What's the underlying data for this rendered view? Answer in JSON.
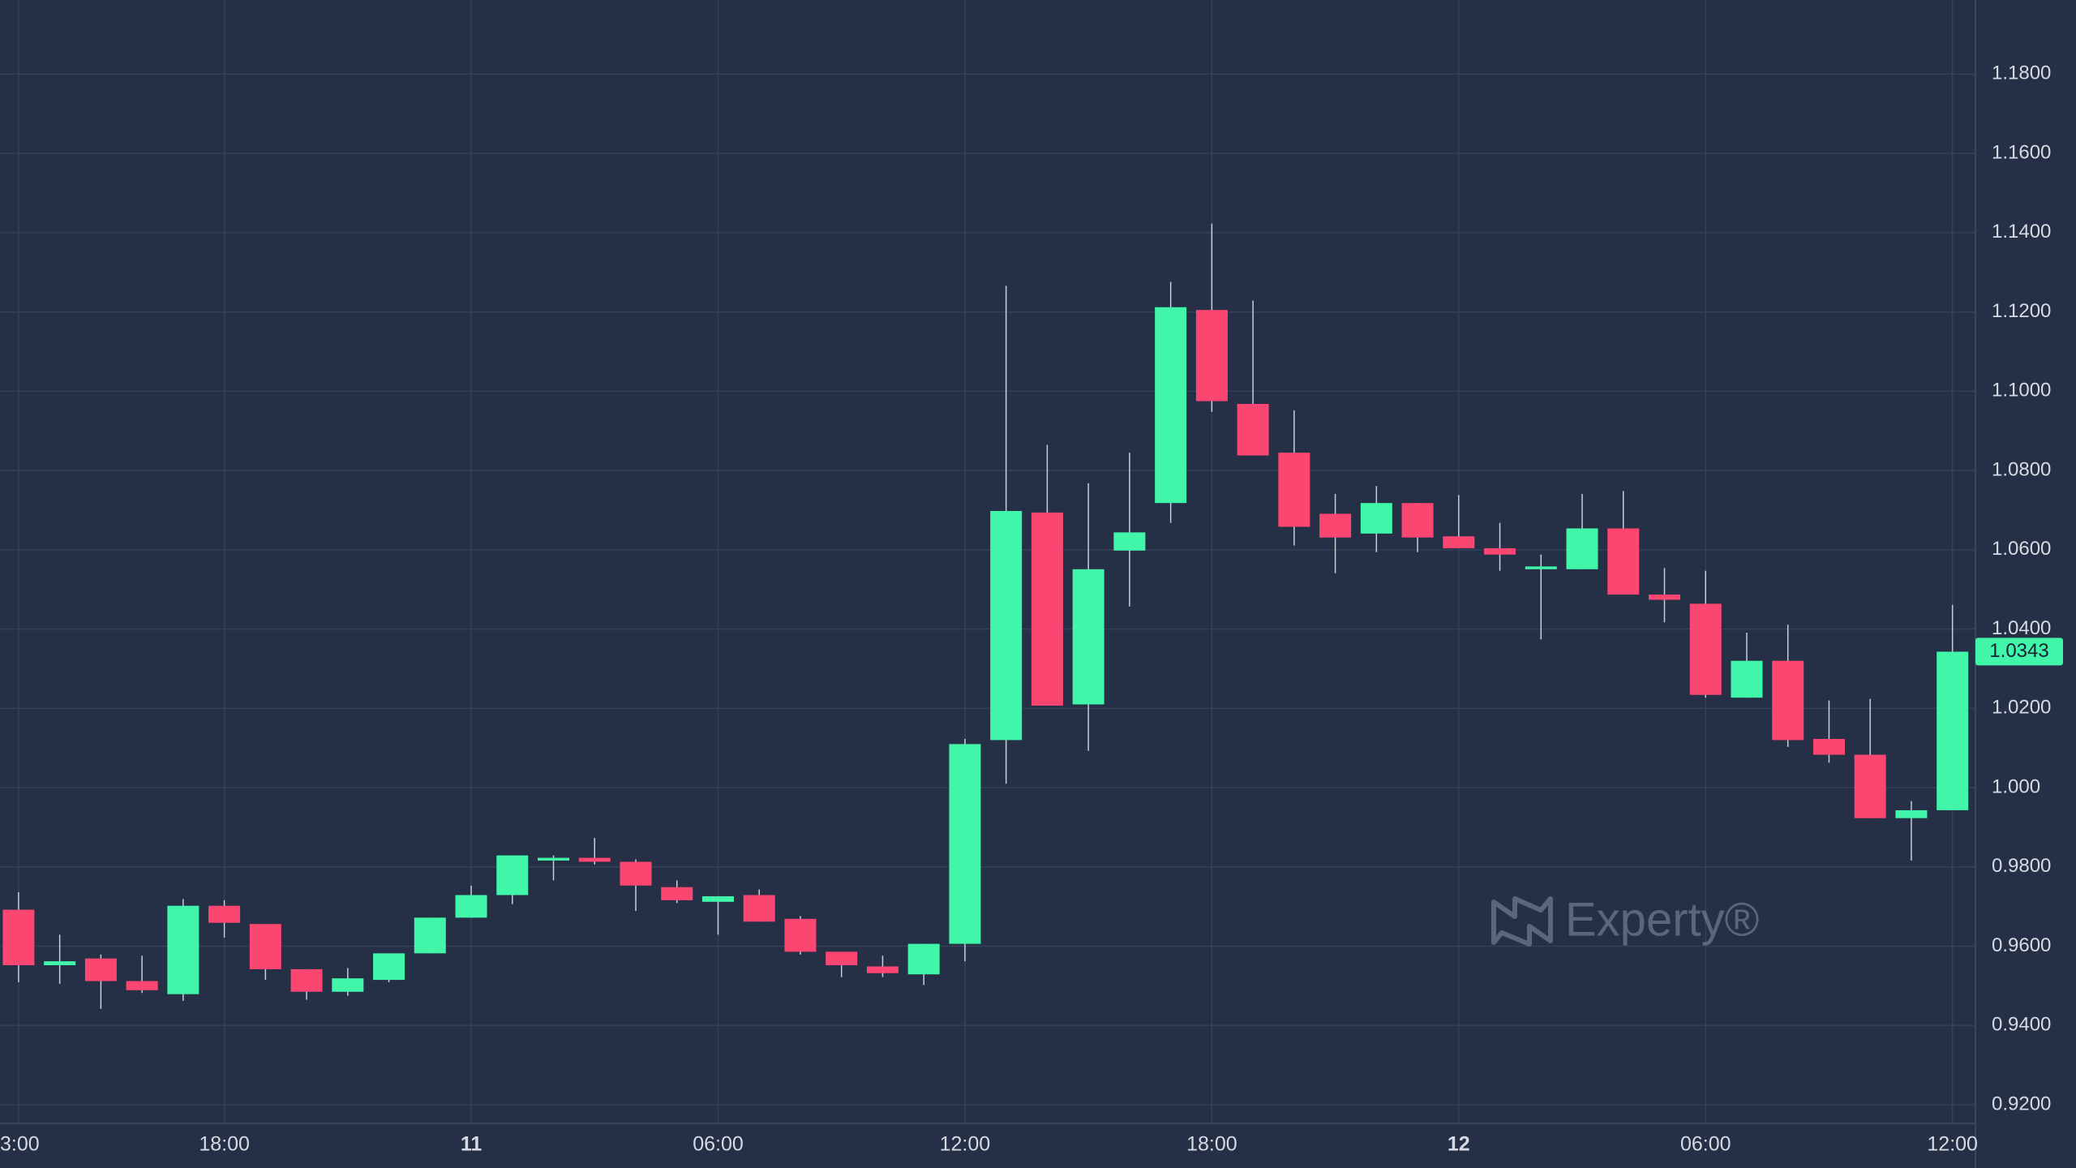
{
  "chart_data": {
    "type": "candlestick",
    "categories": [
      "3:00",
      null,
      null,
      null,
      null,
      "18:00",
      null,
      null,
      null,
      null,
      null,
      "11",
      null,
      null,
      null,
      null,
      null,
      "06:00",
      null,
      null,
      null,
      null,
      null,
      "12:00",
      null,
      null,
      null,
      null,
      null,
      "18:00",
      null,
      null,
      null,
      null,
      null,
      "12",
      null,
      null,
      null,
      null,
      null,
      "06:00",
      null,
      null,
      null,
      null,
      null,
      "12:00"
    ],
    "open": [
      0.9692,
      0.9552,
      0.9569,
      0.9512,
      0.9479,
      0.9702,
      0.9656,
      0.9542,
      0.9485,
      0.9515,
      0.9582,
      0.9672,
      0.9729,
      0.9816,
      0.9823,
      0.9813,
      0.9749,
      0.9712,
      0.9729,
      0.9669,
      0.9586,
      0.9549,
      0.9529,
      0.9606,
      1.012,
      1.0694,
      1.021,
      1.0598,
      1.0718,
      1.1205,
      1.0968,
      1.0845,
      1.0691,
      1.0641,
      1.0718,
      1.0634,
      1.0604,
      1.0551,
      1.0551,
      1.0654,
      1.0487,
      1.0464,
      1.0227,
      1.032,
      1.0123,
      1.0083,
      0.9923,
      0.9943
    ],
    "high": [
      0.9736,
      0.9629,
      0.9579,
      0.9576,
      0.9719,
      0.9716,
      0.9656,
      0.9542,
      0.9545,
      0.9582,
      0.9672,
      0.9753,
      0.9829,
      0.9829,
      0.9873,
      0.9819,
      0.9766,
      0.9726,
      0.9743,
      0.9676,
      0.9586,
      0.9576,
      0.9606,
      1.0123,
      1.1266,
      1.0865,
      1.0768,
      1.0845,
      1.1276,
      1.1423,
      1.1229,
      1.0952,
      1.0741,
      1.0761,
      1.0718,
      1.0738,
      1.0668,
      1.0588,
      1.0741,
      1.0748,
      1.0554,
      1.0547,
      1.0391,
      1.0411,
      1.022,
      1.0224,
      0.9966,
      1.0461
    ],
    "low": [
      0.9509,
      0.9505,
      0.9442,
      0.9482,
      0.9462,
      0.9622,
      0.9515,
      0.9465,
      0.9475,
      0.9509,
      0.9582,
      0.9672,
      0.9706,
      0.9766,
      0.9806,
      0.9689,
      0.9709,
      0.9629,
      0.9662,
      0.9579,
      0.9522,
      0.9522,
      0.9502,
      0.9562,
      1.001,
      1.0207,
      1.0093,
      1.0457,
      1.0668,
      1.0948,
      1.0838,
      1.0611,
      1.0541,
      1.0594,
      1.0594,
      1.0604,
      1.0547,
      1.0374,
      1.0551,
      1.0487,
      1.0417,
      1.0227,
      1.0227,
      1.0103,
      1.0063,
      0.9923,
      0.9816,
      0.9943
    ],
    "close": [
      0.9552,
      0.9562,
      0.9512,
      0.9489,
      0.9702,
      0.9659,
      0.9542,
      0.9485,
      0.9519,
      0.9582,
      0.9672,
      0.9729,
      0.9829,
      0.9823,
      0.9813,
      0.9753,
      0.9716,
      0.9726,
      0.9662,
      0.9586,
      0.9552,
      0.9532,
      0.9606,
      1.011,
      1.0698,
      1.0207,
      1.0551,
      1.0644,
      1.1212,
      1.0975,
      1.0838,
      1.0658,
      1.0631,
      1.0718,
      1.0631,
      1.0604,
      1.0588,
      1.0558,
      1.0654,
      1.0487,
      1.0474,
      1.0234,
      1.032,
      1.012,
      1.0083,
      0.9923,
      0.9943,
      1.0343
    ],
    "last_value_label": "1.0343",
    "up_color": "#41f5a9",
    "down_color": "#fb4672",
    "ylim": [
      0.9153,
      1.1987
    ],
    "yticks": [
      {
        "value": 1.18,
        "label": "1.1800"
      },
      {
        "value": 1.16,
        "label": "1.1600"
      },
      {
        "value": 1.14,
        "label": "1.1400"
      },
      {
        "value": 1.12,
        "label": "1.1200"
      },
      {
        "value": 1.1,
        "label": "1.1000"
      },
      {
        "value": 1.08,
        "label": "1.0800"
      },
      {
        "value": 1.06,
        "label": "1.0600"
      },
      {
        "value": 1.04,
        "label": "1.0400"
      },
      {
        "value": 1.02,
        "label": "1.0200"
      },
      {
        "value": 1.0,
        "label": "1.000"
      },
      {
        "value": 0.98,
        "label": "0.9800"
      },
      {
        "value": 0.96,
        "label": "0.9600"
      },
      {
        "value": 0.94,
        "label": "0.9400"
      },
      {
        "value": 0.92,
        "label": "0.9200"
      }
    ],
    "grid": true,
    "watermark": "Experty®"
  }
}
